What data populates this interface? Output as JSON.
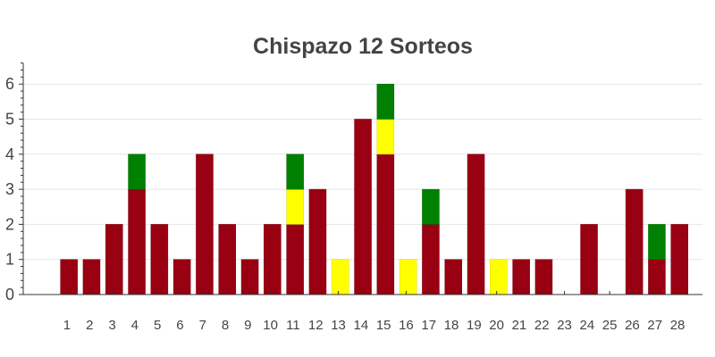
{
  "chart_data": {
    "type": "bar",
    "stacked": true,
    "title": "Chispazo 12 Sorteos",
    "xlabel": "",
    "ylabel": "",
    "ylim": [
      0,
      6.6
    ],
    "yticks": [
      "0",
      "1",
      "2",
      "3",
      "4",
      "5",
      "6"
    ],
    "grid": true,
    "legend": "none",
    "categories": [
      "1",
      "2",
      "3",
      "4",
      "5",
      "6",
      "7",
      "8",
      "9",
      "10",
      "11",
      "12",
      "13",
      "14",
      "15",
      "16",
      "17",
      "18",
      "19",
      "20",
      "21",
      "22",
      "23",
      "24",
      "25",
      "26",
      "27",
      "28"
    ],
    "series": [
      {
        "color": "#990011",
        "values": [
          1,
          1,
          2,
          3,
          2,
          1,
          4,
          2,
          1,
          2,
          2,
          3,
          0,
          5,
          4,
          0,
          2,
          1,
          4,
          0,
          1,
          1,
          0,
          2,
          0,
          3,
          1,
          2
        ]
      },
      {
        "color": "#ffff00",
        "values": [
          0,
          0,
          0,
          0,
          0,
          0,
          0,
          0,
          0,
          0,
          1,
          0,
          1,
          0,
          1,
          1,
          0,
          0,
          0,
          1,
          0,
          0,
          0,
          0,
          0,
          0,
          0,
          0
        ]
      },
      {
        "color": "#008000",
        "values": [
          0,
          0,
          0,
          1,
          0,
          0,
          0,
          0,
          0,
          0,
          1,
          0,
          0,
          0,
          1,
          0,
          1,
          0,
          0,
          0,
          0,
          0,
          0,
          0,
          0,
          0,
          1,
          0
        ]
      }
    ]
  }
}
